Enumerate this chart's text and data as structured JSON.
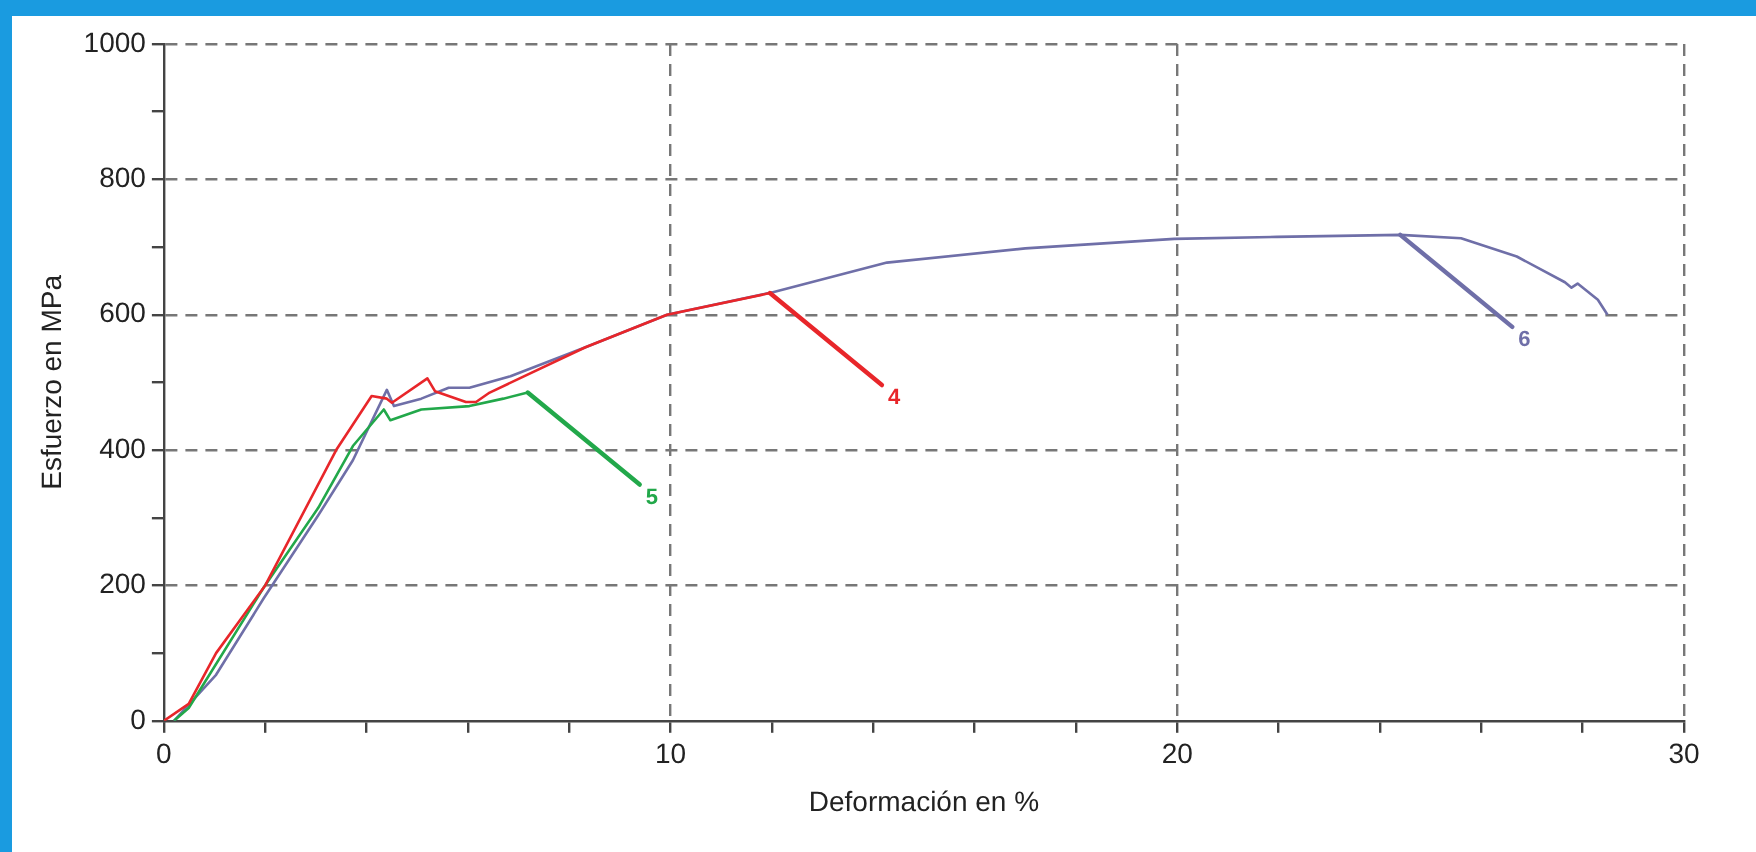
{
  "chart_data": {
    "type": "line",
    "xlabel": "Deformación en %",
    "ylabel": "Esfuerzo en MPa",
    "xlim": [
      0,
      30
    ],
    "ylim": [
      0,
      1000
    ],
    "xticks": [
      0,
      {
        "value": 2,
        "label": null
      },
      {
        "value": 4,
        "label": null
      },
      {
        "value": 6,
        "label": null
      },
      {
        "value": 8,
        "label": null
      },
      10,
      {
        "value": 12,
        "label": null
      },
      {
        "value": 14,
        "label": null
      },
      {
        "value": 16,
        "label": null
      },
      {
        "value": 18,
        "label": null
      },
      20,
      {
        "value": 22,
        "label": null
      },
      {
        "value": 24,
        "label": null
      },
      {
        "value": 26,
        "label": null
      },
      {
        "value": 28,
        "label": null
      },
      30
    ],
    "yticks": [
      0,
      {
        "value": 100,
        "label": null
      },
      200,
      {
        "value": 300,
        "label": null
      },
      400,
      {
        "value": 500,
        "label": null
      },
      600,
      {
        "value": 700,
        "label": null
      },
      800,
      {
        "value": 900,
        "label": null
      },
      1000
    ],
    "grid": true,
    "legend": false,
    "marker": "none",
    "line_style": "solid",
    "series": [
      {
        "name": "4",
        "color": "#e8262a",
        "x": [
          0,
          0.49,
          1.03,
          2.0,
          3.4,
          4.1,
          4.4,
          4.5,
          5.2,
          5.35,
          5.96,
          6.16,
          6.43,
          8.32,
          9.93,
          11.96
        ],
        "values": [
          0,
          25,
          100,
          200,
          400,
          480,
          476,
          470,
          506,
          487,
          471,
          471,
          485,
          552,
          600,
          632
        ]
      },
      {
        "name": "5",
        "color": "#22a84a",
        "x": [
          0.2,
          0.49,
          1.97,
          3.05,
          3.73,
          4.34,
          4.47,
          5.08,
          6.03,
          6.7,
          7.18
        ],
        "values": [
          0,
          19,
          197,
          315,
          406,
          460,
          444,
          460,
          465,
          476,
          485
        ]
      },
      {
        "name": "6",
        "color": "#6f6fa8",
        "x": [
          0.2,
          1.03,
          1.97,
          3.05,
          3.73,
          4.4,
          4.54,
          5.08,
          5.62,
          6.03,
          6.84,
          8.32,
          9.93,
          12.0,
          14.27,
          17.0,
          19.94,
          21.97,
          24.4,
          25.6,
          26.7,
          27.65,
          27.78,
          27.9,
          28.3,
          28.49
        ],
        "values": [
          0,
          68,
          181,
          304,
          385,
          489,
          465,
          476,
          492,
          492,
          509,
          552,
          600,
          633,
          677,
          698,
          712,
          715,
          718,
          713,
          686,
          648,
          640,
          646,
          622,
          600
        ]
      }
    ]
  }
}
